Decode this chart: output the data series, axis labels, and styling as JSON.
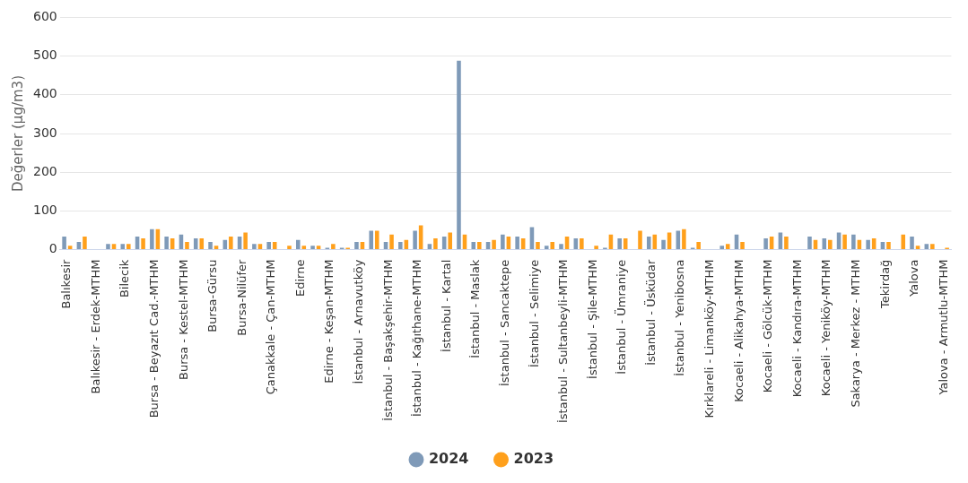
{
  "chart_data": {
    "type": "bar",
    "ylabel": "Değerler (µg/m3)",
    "categories": [
      "Balıkesir",
      null,
      "Balıkesir - Erdek-MTHM",
      null,
      "Bilecik",
      null,
      "Bursa - Beyazıt Cad.-MTHM",
      null,
      "Bursa - Kestel-MTHM",
      null,
      "Bursa-Gürsu",
      null,
      "Bursa-Nilüfer",
      null,
      "Çanakkale - Çan-MTHM",
      null,
      "Edirne",
      null,
      "Edirne - Keşan-MTHM",
      null,
      "İstanbul - Arnavutköy",
      null,
      "İstanbul - Başakşehir-MTHM",
      null,
      "İstanbul - Kağıthane-MTHM",
      null,
      "İstanbul - Kartal",
      null,
      "İstanbul - Maslak",
      null,
      "İstanbul - Sancaktepe",
      null,
      "İstanbul - Selimiye",
      null,
      "İstanbul - Sultanbeyli-MTHM",
      null,
      "İstanbul - Şile-MTHM",
      null,
      "İstanbul - Ümraniye",
      null,
      "İstanbul - Üsküdar",
      null,
      "İstanbul - Yenibosna",
      null,
      "Kırklareli - Limanköy-MTHM",
      null,
      "Kocaeli - Alikahya-MTHM",
      null,
      "Kocaeli - Gölcük-MTHM",
      null,
      "Kocaeli - Kandıra-MTHM",
      null,
      "Kocaeli - Yeniköy-MTHM",
      null,
      "Sakarya - Merkez - MTHM",
      null,
      "Tekirdağ",
      null,
      "Yalova",
      null,
      "Yalova - Armutlu-MTHM"
    ],
    "series": [
      {
        "name": "2024",
        "color": "#7f9ab8",
        "values": [
          34,
          20,
          null,
          15,
          15,
          34,
          53,
          34,
          39,
          29,
          20,
          25,
          34,
          15,
          20,
          null,
          25,
          10,
          5,
          5,
          20,
          49,
          20,
          20,
          49,
          15,
          34,
          488,
          20,
          20,
          39,
          34,
          58,
          10,
          15,
          29,
          null,
          5,
          29,
          null,
          34,
          25,
          49,
          5,
          null,
          10,
          39,
          null,
          29,
          44,
          null,
          34,
          29,
          44,
          39,
          25,
          20,
          null,
          34,
          15,
          null
        ]
      },
      {
        "name": "2023",
        "color": "#ffa01c",
        "values": [
          10,
          34,
          null,
          15,
          15,
          29,
          53,
          29,
          20,
          29,
          10,
          34,
          44,
          15,
          20,
          10,
          10,
          10,
          15,
          5,
          20,
          49,
          39,
          25,
          63,
          29,
          44,
          39,
          20,
          25,
          34,
          29,
          20,
          20,
          34,
          29,
          10,
          39,
          29,
          49,
          39,
          44,
          53,
          20,
          null,
          15,
          20,
          null,
          34,
          34,
          null,
          25,
          25,
          39,
          25,
          29,
          20,
          39,
          10,
          15,
          5
        ]
      }
    ],
    "ylim": [
      0,
      600
    ],
    "yticks": [
      0,
      100,
      200,
      300,
      400,
      500,
      600
    ],
    "grid": "y",
    "legend": "bottom"
  }
}
